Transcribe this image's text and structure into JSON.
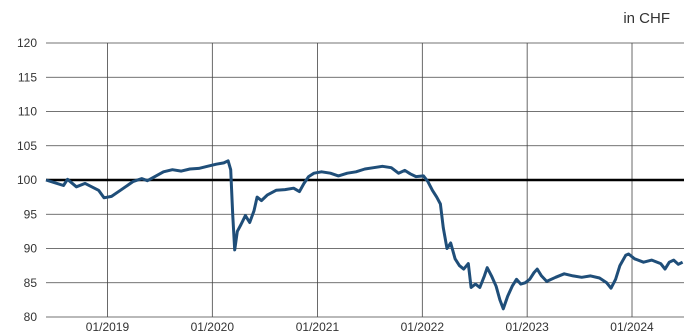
{
  "unit_label": "in CHF",
  "chart_data": {
    "type": "line",
    "title": "",
    "xlabel": "",
    "ylabel": "",
    "ylim": [
      80,
      120
    ],
    "yticks": [
      80,
      85,
      90,
      95,
      100,
      105,
      110,
      115,
      120
    ],
    "xlim": [
      "2018-06-01",
      "2024-06-30"
    ],
    "xticks": [
      {
        "date": "2019-01-01",
        "label": "01/2019"
      },
      {
        "date": "2020-01-01",
        "label": "01/2020"
      },
      {
        "date": "2021-01-01",
        "label": "01/2021"
      },
      {
        "date": "2022-01-01",
        "label": "01/2022"
      },
      {
        "date": "2023-01-01",
        "label": "01/2023"
      },
      {
        "date": "2024-01-01",
        "label": "01/2024"
      }
    ],
    "grid": "vertical-and-horizontal",
    "reference_line": {
      "y": 100,
      "color": "#000000"
    },
    "series": [
      {
        "color": "#1f4e79",
        "points": [
          [
            "2018-06-01",
            100.0
          ],
          [
            "2018-07-01",
            99.6
          ],
          [
            "2018-08-01",
            99.2
          ],
          [
            "2018-08-15",
            100.1
          ],
          [
            "2018-09-15",
            99.0
          ],
          [
            "2018-10-15",
            99.5
          ],
          [
            "2018-12-01",
            98.5
          ],
          [
            "2018-12-20",
            97.4
          ],
          [
            "2019-01-15",
            97.6
          ],
          [
            "2019-02-15",
            98.5
          ],
          [
            "2019-04-01",
            99.8
          ],
          [
            "2019-05-01",
            100.2
          ],
          [
            "2019-05-20",
            99.9
          ],
          [
            "2019-06-15",
            100.5
          ],
          [
            "2019-07-15",
            101.2
          ],
          [
            "2019-08-15",
            101.5
          ],
          [
            "2019-09-15",
            101.3
          ],
          [
            "2019-10-15",
            101.6
          ],
          [
            "2019-11-15",
            101.7
          ],
          [
            "2019-12-15",
            102.0
          ],
          [
            "2020-01-15",
            102.3
          ],
          [
            "2020-02-10",
            102.5
          ],
          [
            "2020-02-25",
            102.8
          ],
          [
            "2020-03-05",
            101.5
          ],
          [
            "2020-03-12",
            95.0
          ],
          [
            "2020-03-19",
            89.8
          ],
          [
            "2020-03-28",
            92.5
          ],
          [
            "2020-04-10",
            93.5
          ],
          [
            "2020-04-25",
            94.8
          ],
          [
            "2020-05-10",
            93.8
          ],
          [
            "2020-05-25",
            95.5
          ],
          [
            "2020-06-05",
            97.5
          ],
          [
            "2020-06-20",
            97.0
          ],
          [
            "2020-07-10",
            97.8
          ],
          [
            "2020-08-10",
            98.5
          ],
          [
            "2020-09-10",
            98.6
          ],
          [
            "2020-10-10",
            98.8
          ],
          [
            "2020-10-30",
            98.3
          ],
          [
            "2020-11-15",
            99.5
          ],
          [
            "2020-12-01",
            100.5
          ],
          [
            "2020-12-20",
            101.0
          ],
          [
            "2021-01-15",
            101.2
          ],
          [
            "2021-02-15",
            101.0
          ],
          [
            "2021-03-15",
            100.6
          ],
          [
            "2021-04-15",
            101.0
          ],
          [
            "2021-05-15",
            101.2
          ],
          [
            "2021-06-15",
            101.6
          ],
          [
            "2021-07-15",
            101.8
          ],
          [
            "2021-08-15",
            102.0
          ],
          [
            "2021-09-15",
            101.8
          ],
          [
            "2021-10-10",
            101.0
          ],
          [
            "2021-11-01",
            101.4
          ],
          [
            "2021-11-20",
            100.9
          ],
          [
            "2021-12-10",
            100.5
          ],
          [
            "2022-01-05",
            100.6
          ],
          [
            "2022-01-20",
            99.8
          ],
          [
            "2022-02-05",
            98.5
          ],
          [
            "2022-02-20",
            97.5
          ],
          [
            "2022-03-05",
            96.5
          ],
          [
            "2022-03-15",
            93.0
          ],
          [
            "2022-03-28",
            90.0
          ],
          [
            "2022-04-10",
            90.8
          ],
          [
            "2022-04-25",
            88.5
          ],
          [
            "2022-05-10",
            87.5
          ],
          [
            "2022-05-25",
            87.0
          ],
          [
            "2022-06-10",
            87.8
          ],
          [
            "2022-06-20",
            84.3
          ],
          [
            "2022-07-05",
            84.8
          ],
          [
            "2022-07-20",
            84.3
          ],
          [
            "2022-08-05",
            86.0
          ],
          [
            "2022-08-15",
            87.2
          ],
          [
            "2022-08-30",
            86.0
          ],
          [
            "2022-09-15",
            84.5
          ],
          [
            "2022-09-28",
            82.5
          ],
          [
            "2022-10-10",
            81.2
          ],
          [
            "2022-10-25",
            83.0
          ],
          [
            "2022-11-10",
            84.5
          ],
          [
            "2022-11-25",
            85.5
          ],
          [
            "2022-12-10",
            84.8
          ],
          [
            "2022-12-25",
            85.0
          ],
          [
            "2023-01-10",
            85.5
          ],
          [
            "2023-01-25",
            86.5
          ],
          [
            "2023-02-05",
            87.0
          ],
          [
            "2023-02-20",
            86.0
          ],
          [
            "2023-03-10",
            85.2
          ],
          [
            "2023-04-10",
            85.8
          ],
          [
            "2023-05-10",
            86.3
          ],
          [
            "2023-06-10",
            86.0
          ],
          [
            "2023-07-10",
            85.8
          ],
          [
            "2023-08-10",
            86.0
          ],
          [
            "2023-09-10",
            85.7
          ],
          [
            "2023-10-05",
            85.0
          ],
          [
            "2023-10-20",
            84.2
          ],
          [
            "2023-11-05",
            85.5
          ],
          [
            "2023-11-20",
            87.5
          ],
          [
            "2023-12-10",
            89.0
          ],
          [
            "2023-12-20",
            89.2
          ],
          [
            "2024-01-10",
            88.5
          ],
          [
            "2024-02-10",
            88.0
          ],
          [
            "2024-03-10",
            88.3
          ],
          [
            "2024-04-10",
            87.8
          ],
          [
            "2024-04-25",
            87.0
          ],
          [
            "2024-05-10",
            88.0
          ],
          [
            "2024-05-25",
            88.3
          ],
          [
            "2024-06-10",
            87.7
          ],
          [
            "2024-06-25",
            88.0
          ]
        ]
      }
    ]
  }
}
